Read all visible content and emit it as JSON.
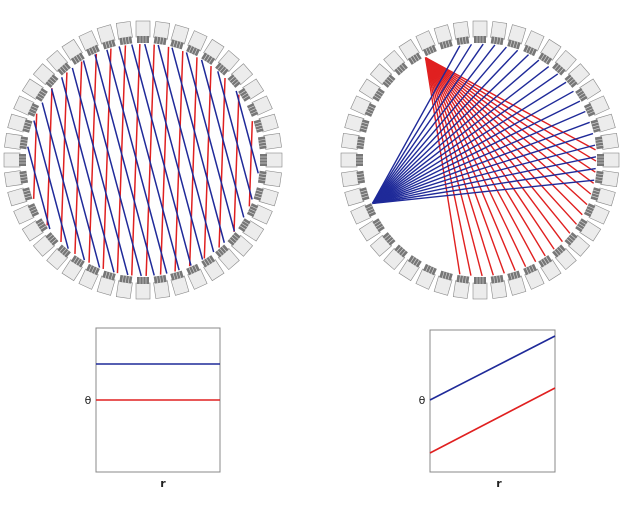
{
  "left_panel": {
    "y_label": "θ",
    "x_label": "r"
  },
  "right_panel": {
    "y_label": "θ",
    "x_label": "r"
  }
}
